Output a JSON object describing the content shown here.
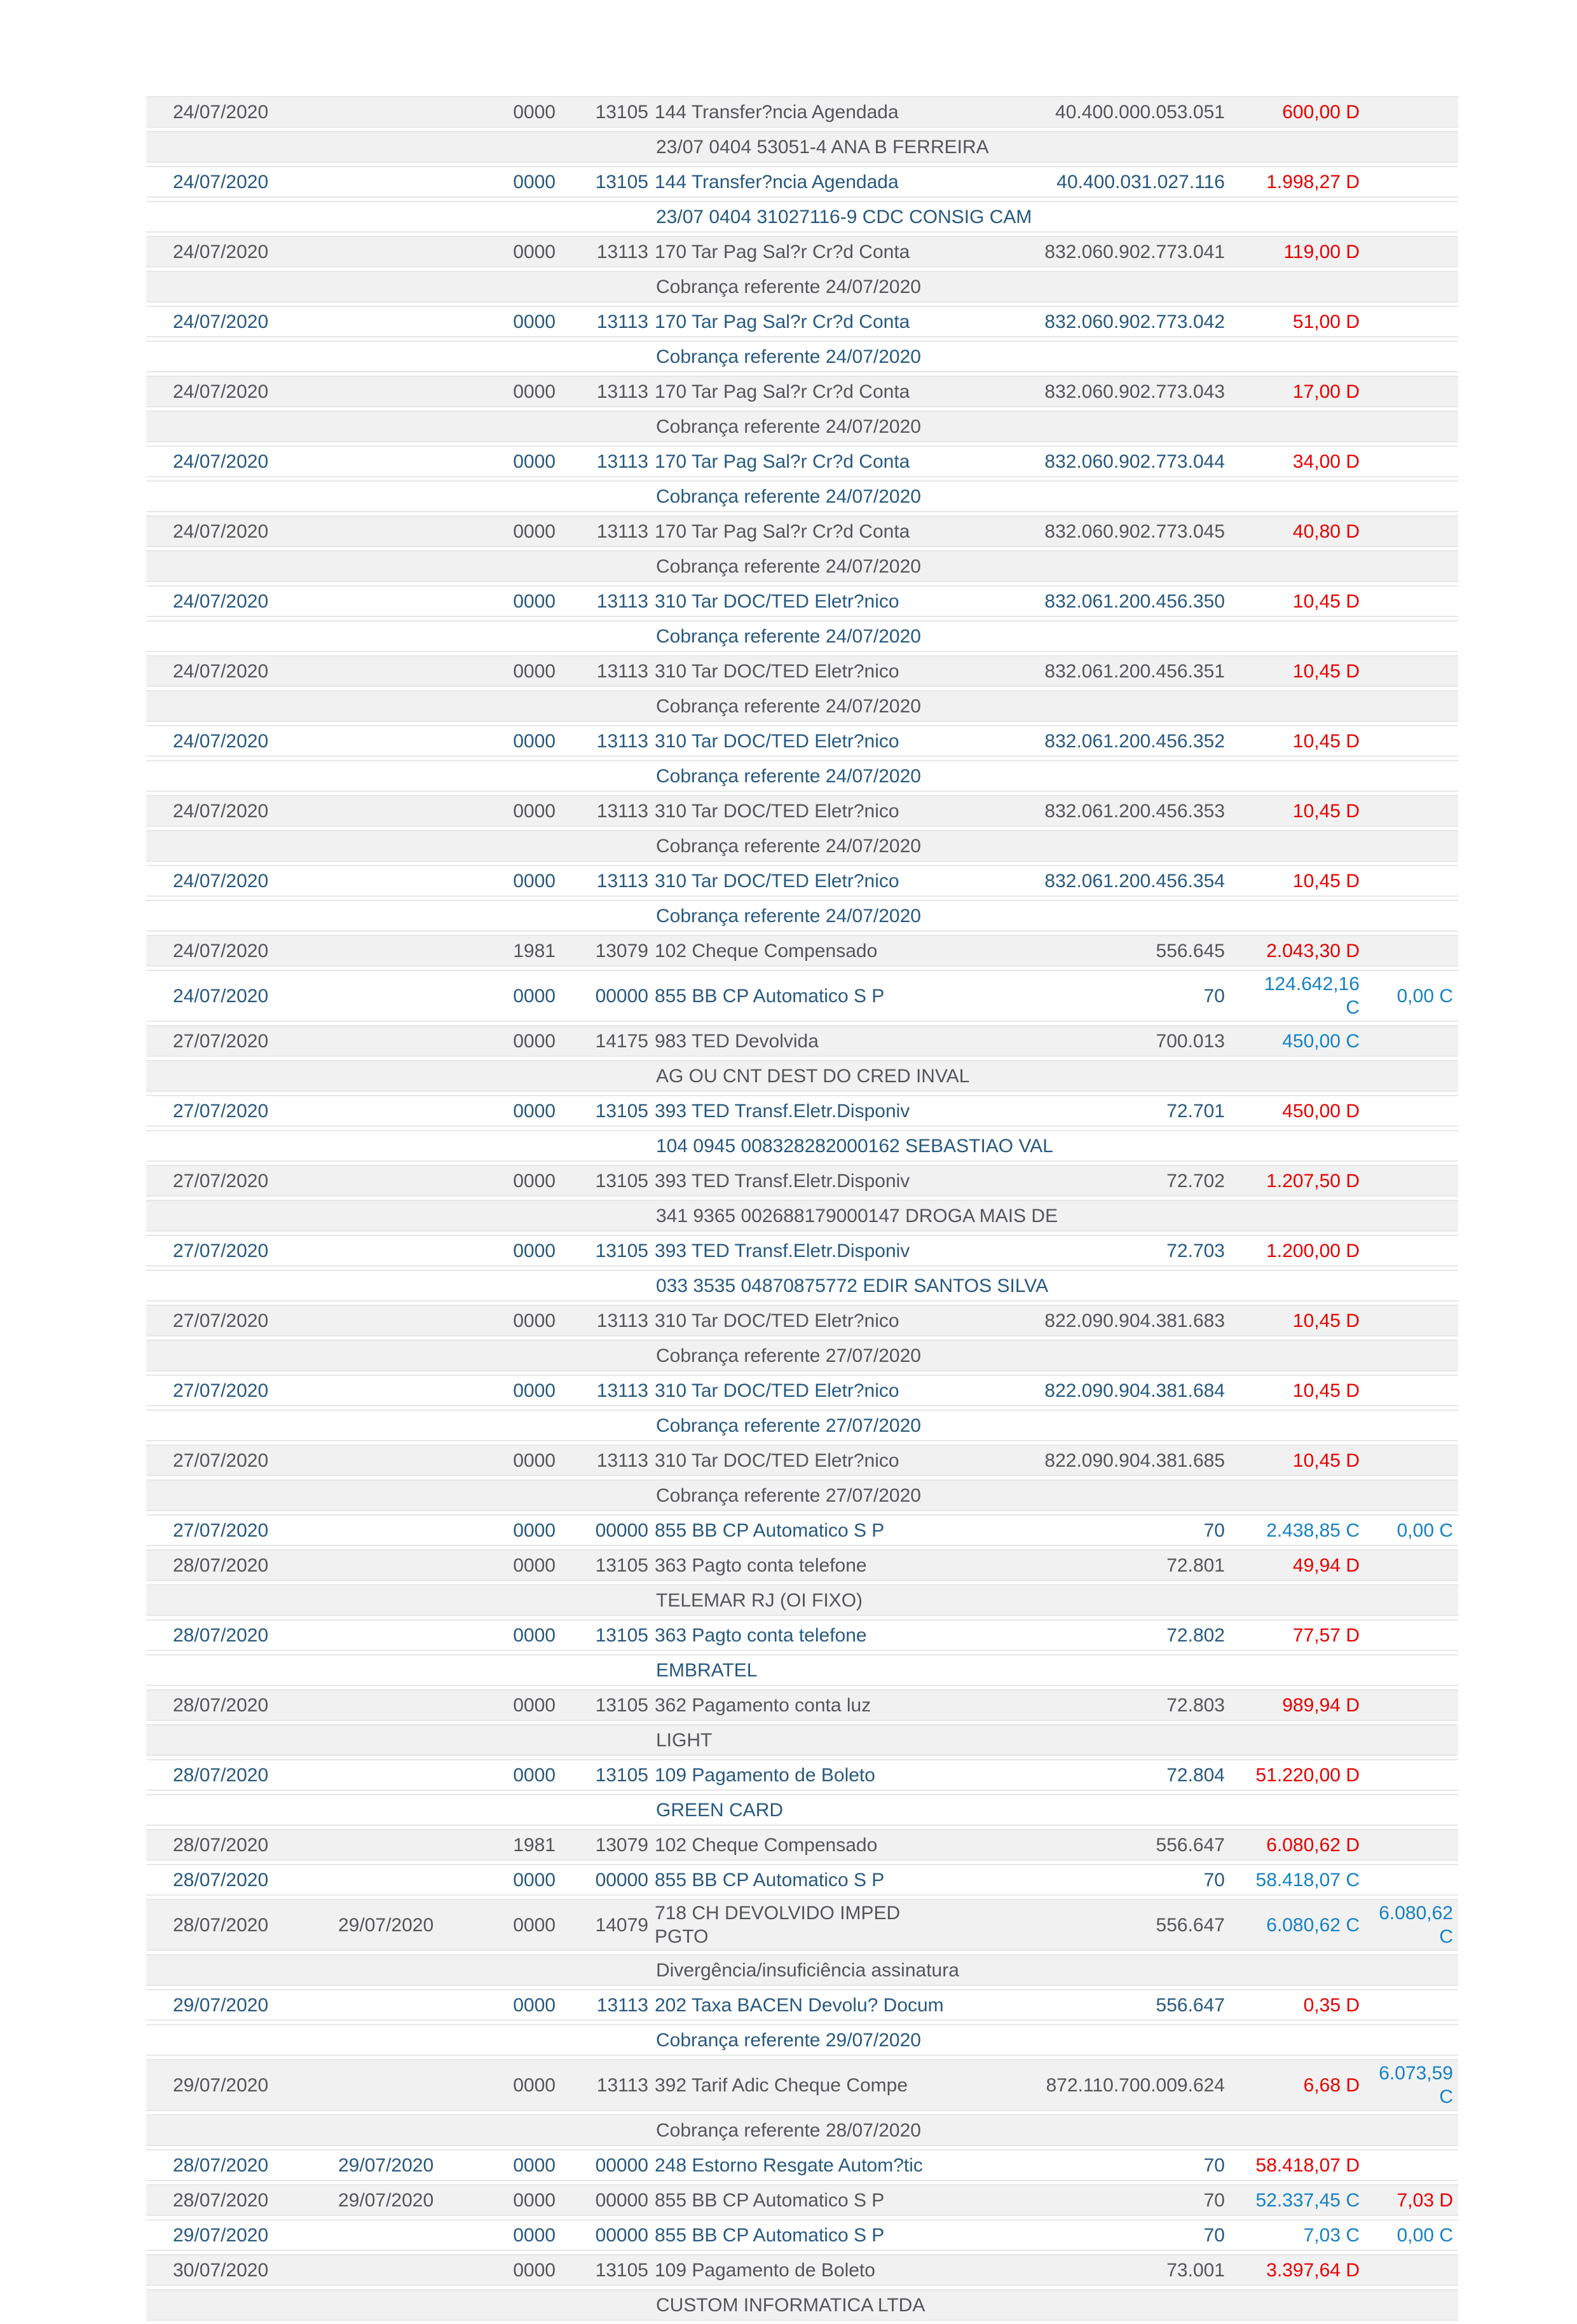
{
  "colors": {
    "stripe_gray": "#f1f1f1",
    "stripe_white": "#ffffff",
    "text_gray": "#54565a",
    "text_blue": "#28597f",
    "debit_red": "#e60000",
    "credit_blue": "#1681c4",
    "separator": "#e7e7e7"
  },
  "table": {
    "transactions": [
      {
        "date1": "24/07/2020",
        "date2": "",
        "batch": "0000",
        "lot": "13105",
        "history": "144 Transfer?ncia Agendada",
        "document": "40.400.000.053.051",
        "value": "600,00 D",
        "value2": "",
        "detail": "23/07 0404 53051-4 ANA B FERREIRA"
      },
      {
        "date1": "24/07/2020",
        "date2": "",
        "batch": "0000",
        "lot": "13105",
        "history": "144 Transfer?ncia Agendada",
        "document": "40.400.031.027.116",
        "value": "1.998,27 D",
        "value2": "",
        "detail": "23/07 0404 31027116-9 CDC CONSIG CAM"
      },
      {
        "date1": "24/07/2020",
        "date2": "",
        "batch": "0000",
        "lot": "13113",
        "history": "170 Tar Pag Sal?r Cr?d Conta",
        "document": "832.060.902.773.041",
        "value": "119,00 D",
        "value2": "",
        "detail": "Cobrança referente 24/07/2020"
      },
      {
        "date1": "24/07/2020",
        "date2": "",
        "batch": "0000",
        "lot": "13113",
        "history": "170 Tar Pag Sal?r Cr?d Conta",
        "document": "832.060.902.773.042",
        "value": "51,00 D",
        "value2": "",
        "detail": "Cobrança referente 24/07/2020"
      },
      {
        "date1": "24/07/2020",
        "date2": "",
        "batch": "0000",
        "lot": "13113",
        "history": "170 Tar Pag Sal?r Cr?d Conta",
        "document": "832.060.902.773.043",
        "value": "17,00 D",
        "value2": "",
        "detail": "Cobrança referente 24/07/2020"
      },
      {
        "date1": "24/07/2020",
        "date2": "",
        "batch": "0000",
        "lot": "13113",
        "history": "170 Tar Pag Sal?r Cr?d Conta",
        "document": "832.060.902.773.044",
        "value": "34,00 D",
        "value2": "",
        "detail": "Cobrança referente 24/07/2020"
      },
      {
        "date1": "24/07/2020",
        "date2": "",
        "batch": "0000",
        "lot": "13113",
        "history": "170 Tar Pag Sal?r Cr?d Conta",
        "document": "832.060.902.773.045",
        "value": "40,80 D",
        "value2": "",
        "detail": "Cobrança referente 24/07/2020"
      },
      {
        "date1": "24/07/2020",
        "date2": "",
        "batch": "0000",
        "lot": "13113",
        "history": "310 Tar DOC/TED Eletr?nico",
        "document": "832.061.200.456.350",
        "value": "10,45 D",
        "value2": "",
        "detail": "Cobrança referente 24/07/2020"
      },
      {
        "date1": "24/07/2020",
        "date2": "",
        "batch": "0000",
        "lot": "13113",
        "history": "310 Tar DOC/TED Eletr?nico",
        "document": "832.061.200.456.351",
        "value": "10,45 D",
        "value2": "",
        "detail": "Cobrança referente 24/07/2020"
      },
      {
        "date1": "24/07/2020",
        "date2": "",
        "batch": "0000",
        "lot": "13113",
        "history": "310 Tar DOC/TED Eletr?nico",
        "document": "832.061.200.456.352",
        "value": "10,45 D",
        "value2": "",
        "detail": "Cobrança referente 24/07/2020"
      },
      {
        "date1": "24/07/2020",
        "date2": "",
        "batch": "0000",
        "lot": "13113",
        "history": "310 Tar DOC/TED Eletr?nico",
        "document": "832.061.200.456.353",
        "value": "10,45 D",
        "value2": "",
        "detail": "Cobrança referente 24/07/2020"
      },
      {
        "date1": "24/07/2020",
        "date2": "",
        "batch": "0000",
        "lot": "13113",
        "history": "310 Tar DOC/TED Eletr?nico",
        "document": "832.061.200.456.354",
        "value": "10,45 D",
        "value2": "",
        "detail": "Cobrança referente 24/07/2020"
      },
      {
        "date1": "24/07/2020",
        "date2": "",
        "batch": "1981",
        "lot": "13079",
        "history": "102 Cheque Compensado",
        "document": "556.645",
        "value": "2.043,30 D",
        "value2": "",
        "detail": ""
      },
      {
        "date1": "24/07/2020",
        "date2": "",
        "batch": "0000",
        "lot": "00000",
        "history": "855 BB CP Automatico S P",
        "document": "70",
        "value": "124.642,16\nC",
        "value2": "0,00 C",
        "detail": ""
      },
      {
        "date1": "27/07/2020",
        "date2": "",
        "batch": "0000",
        "lot": "14175",
        "history": "983 TED Devolvida",
        "document": "700.013",
        "value": "450,00 C",
        "value2": "",
        "detail": "AG OU CNT DEST DO CRED INVAL"
      },
      {
        "date1": "27/07/2020",
        "date2": "",
        "batch": "0000",
        "lot": "13105",
        "history": "393 TED Transf.Eletr.Disponiv",
        "document": "72.701",
        "value": "450,00 D",
        "value2": "",
        "detail": "104 0945 008328282000162 SEBASTIAO VAL"
      },
      {
        "date1": "27/07/2020",
        "date2": "",
        "batch": "0000",
        "lot": "13105",
        "history": "393 TED Transf.Eletr.Disponiv",
        "document": "72.702",
        "value": "1.207,50 D",
        "value2": "",
        "detail": "341 9365 002688179000147 DROGA MAIS DE"
      },
      {
        "date1": "27/07/2020",
        "date2": "",
        "batch": "0000",
        "lot": "13105",
        "history": "393 TED Transf.Eletr.Disponiv",
        "document": "72.703",
        "value": "1.200,00 D",
        "value2": "",
        "detail": "033 3535 04870875772 EDIR SANTOS SILVA"
      },
      {
        "date1": "27/07/2020",
        "date2": "",
        "batch": "0000",
        "lot": "13113",
        "history": "310 Tar DOC/TED Eletr?nico",
        "document": "822.090.904.381.683",
        "value": "10,45 D",
        "value2": "",
        "detail": "Cobrança referente 27/07/2020"
      },
      {
        "date1": "27/07/2020",
        "date2": "",
        "batch": "0000",
        "lot": "13113",
        "history": "310 Tar DOC/TED Eletr?nico",
        "document": "822.090.904.381.684",
        "value": "10,45 D",
        "value2": "",
        "detail": "Cobrança referente 27/07/2020"
      },
      {
        "date1": "27/07/2020",
        "date2": "",
        "batch": "0000",
        "lot": "13113",
        "history": "310 Tar DOC/TED Eletr?nico",
        "document": "822.090.904.381.685",
        "value": "10,45 D",
        "value2": "",
        "detail": "Cobrança referente 27/07/2020"
      },
      {
        "date1": "27/07/2020",
        "date2": "",
        "batch": "0000",
        "lot": "00000",
        "history": "855 BB CP Automatico S P",
        "document": "70",
        "value": "2.438,85 C",
        "value2": "0,00 C",
        "detail": ""
      },
      {
        "date1": "28/07/2020",
        "date2": "",
        "batch": "0000",
        "lot": "13105",
        "history": "363 Pagto conta telefone",
        "document": "72.801",
        "value": "49,94 D",
        "value2": "",
        "detail": "TELEMAR RJ (OI FIXO)"
      },
      {
        "date1": "28/07/2020",
        "date2": "",
        "batch": "0000",
        "lot": "13105",
        "history": "363 Pagto conta telefone",
        "document": "72.802",
        "value": "77,57 D",
        "value2": "",
        "detail": "EMBRATEL"
      },
      {
        "date1": "28/07/2020",
        "date2": "",
        "batch": "0000",
        "lot": "13105",
        "history": "362 Pagamento conta luz",
        "document": "72.803",
        "value": "989,94 D",
        "value2": "",
        "detail": "LIGHT"
      },
      {
        "date1": "28/07/2020",
        "date2": "",
        "batch": "0000",
        "lot": "13105",
        "history": "109 Pagamento de Boleto",
        "document": "72.804",
        "value": "51.220,00 D",
        "value2": "",
        "detail": "GREEN CARD"
      },
      {
        "date1": "28/07/2020",
        "date2": "",
        "batch": "1981",
        "lot": "13079",
        "history": "102 Cheque Compensado",
        "document": "556.647",
        "value": "6.080,62 D",
        "value2": "",
        "detail": ""
      },
      {
        "date1": "28/07/2020",
        "date2": "",
        "batch": "0000",
        "lot": "00000",
        "history": "855 BB CP Automatico S P",
        "document": "70",
        "value": "58.418,07 C",
        "value2": "",
        "detail": ""
      },
      {
        "date1": "28/07/2020",
        "date2": "29/07/2020",
        "batch": "0000",
        "lot": "14079",
        "history": "718 CH DEVOLVIDO IMPED\nPGTO",
        "document": "556.647",
        "value": "6.080,62 C",
        "value2": "6.080,62\nC",
        "detail": "Divergência/insuficiência assinatura"
      },
      {
        "date1": "29/07/2020",
        "date2": "",
        "batch": "0000",
        "lot": "13113",
        "history": "202 Taxa BACEN Devolu? Docum",
        "document": "556.647",
        "value": "0,35 D",
        "value2": "",
        "detail": "Cobrança referente 29/07/2020"
      },
      {
        "date1": "29/07/2020",
        "date2": "",
        "batch": "0000",
        "lot": "13113",
        "history": "392 Tarif Adic Cheque Compe",
        "document": "872.110.700.009.624",
        "value": "6,68 D",
        "value2": "6.073,59\nC",
        "detail": "Cobrança referente 28/07/2020"
      },
      {
        "date1": "28/07/2020",
        "date2": "29/07/2020",
        "batch": "0000",
        "lot": "00000",
        "history": "248 Estorno Resgate Autom?tic",
        "document": "70",
        "value": "58.418,07 D",
        "value2": "",
        "detail": ""
      },
      {
        "date1": "28/07/2020",
        "date2": "29/07/2020",
        "batch": "0000",
        "lot": "00000",
        "history": "855 BB CP Automatico S P",
        "document": "70",
        "value": "52.337,45 C",
        "value2": "7,03 D",
        "detail": ""
      },
      {
        "date1": "29/07/2020",
        "date2": "",
        "batch": "0000",
        "lot": "00000",
        "history": "855 BB CP Automatico S P",
        "document": "70",
        "value": "7,03 C",
        "value2": "0,00 C",
        "detail": ""
      },
      {
        "date1": "30/07/2020",
        "date2": "",
        "batch": "0000",
        "lot": "13105",
        "history": "109 Pagamento de Boleto",
        "document": "73.001",
        "value": "3.397,64 D",
        "value2": "",
        "detail": "CUSTOM INFORMATICA LTDA"
      }
    ]
  }
}
